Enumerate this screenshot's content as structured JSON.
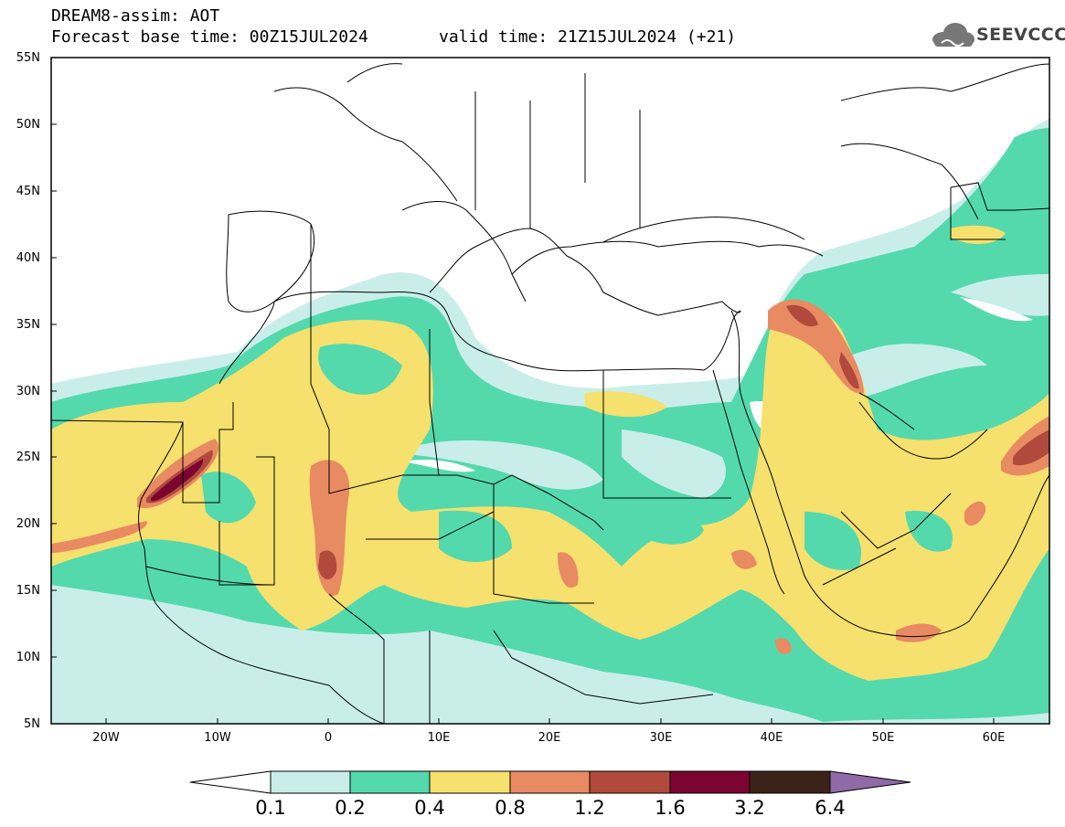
{
  "header": {
    "title_line1": "DREAM8-assim: AOT",
    "title_line2a": "Forecast base time: 00Z15JUL2024",
    "title_line2b": "valid time: 21Z15JUL2024 (+21)",
    "logo_text": "SEEVCCC"
  },
  "map": {
    "lat_labels": [
      "55N",
      "50N",
      "45N",
      "40N",
      "35N",
      "30N",
      "25N",
      "20N",
      "15N",
      "10N",
      "5N"
    ],
    "lon_labels": [
      "20W",
      "10W",
      "0",
      "10E",
      "20E",
      "30E",
      "40E",
      "50E",
      "60E"
    ],
    "extent": {
      "lon": [
        -25,
        65
      ],
      "lat": [
        5,
        55
      ]
    }
  },
  "colorbar": {
    "labels": [
      "0.1",
      "0.2",
      "0.4",
      "0.8",
      "1.2",
      "1.6",
      "3.2",
      "6.4"
    ],
    "colors": [
      "#c9eee9",
      "#54d9ac",
      "#f6e06e",
      "#e88b62",
      "#b14a3d",
      "#7b0530",
      "#3b2319",
      "#8f6aa6"
    ]
  }
}
